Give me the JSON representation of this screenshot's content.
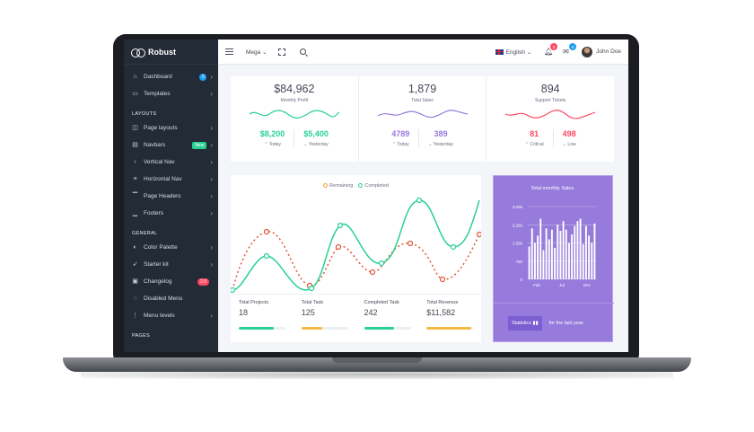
{
  "brand": {
    "name": "Robust"
  },
  "sidebar": {
    "items": [
      {
        "id": "dashboard",
        "label": "Dashboard",
        "icon": "home-icon",
        "badge": "5"
      },
      {
        "id": "templates",
        "label": "Templates",
        "icon": "monitor-icon"
      }
    ],
    "sections": [
      {
        "title": "LAYOUTS",
        "items": [
          {
            "label": "Page layouts",
            "icon": "layout-icon"
          },
          {
            "label": "Navbars",
            "icon": "navbar-icon",
            "badge": "New"
          },
          {
            "label": "Vertical Nav",
            "icon": "vertical-nav-icon"
          },
          {
            "label": "Horizontal Nav",
            "icon": "horizontal-nav-icon"
          },
          {
            "label": "Page Headers",
            "icon": "header-icon"
          },
          {
            "label": "Footers",
            "icon": "footer-icon"
          }
        ]
      },
      {
        "title": "GENERAL",
        "items": [
          {
            "label": "Color Palette",
            "icon": "palette-icon"
          },
          {
            "label": "Starter kit",
            "icon": "rocket-icon"
          },
          {
            "label": "Changelog",
            "icon": "clipboard-icon",
            "badge": "2.0"
          },
          {
            "label": "Disabled Menu",
            "icon": "eye-off-icon"
          },
          {
            "label": "Menu levels",
            "icon": "menu-levels-icon"
          }
        ]
      },
      {
        "title": "PAGES"
      }
    ]
  },
  "topbar": {
    "mega_label": "Mega",
    "language": "English",
    "notifications_count": "5",
    "messages_count": "5",
    "user_name": "John Doe"
  },
  "stats": [
    {
      "value": "$84,962",
      "label": "Monthly Profit",
      "color": "#28d094",
      "subs": [
        {
          "value": "$8,200",
          "label": "Today"
        },
        {
          "value": "$5,400",
          "label": "Yesterday"
        }
      ]
    },
    {
      "value": "1,879",
      "label": "Total Sales",
      "color": "#967adc",
      "subs": [
        {
          "value": "4789",
          "label": "Today"
        },
        {
          "value": "389",
          "label": "Yesterday"
        }
      ]
    },
    {
      "value": "894",
      "label": "Support Tickets",
      "color": "#ff4961",
      "subs": [
        {
          "value": "81",
          "label": "Critical"
        },
        {
          "value": "498",
          "label": "Low"
        }
      ]
    }
  ],
  "line_chart": {
    "legend": {
      "remaining": "Remaining",
      "completed": "Completed"
    },
    "colors": {
      "remaining": "#f4a02f",
      "completed": "#28d094",
      "remaining_points": "#e2553a"
    }
  },
  "totals": [
    {
      "label": "Total Projects",
      "value": "18",
      "color": "#28d094",
      "progress": 0.75
    },
    {
      "label": "Total Task",
      "value": "125",
      "color": "#f4b943",
      "progress": 0.45
    },
    {
      "label": "Completed Task",
      "value": "242",
      "color": "#28d094",
      "progress": 0.65
    },
    {
      "label": "Total Revenue",
      "value": "$11,582",
      "color": "#f4b943",
      "progress": 0.95
    }
  ],
  "bar_card": {
    "title": "Total monthly Sales.",
    "button_label": "Statistics",
    "footer_text": "for the last year."
  },
  "chart_data": {
    "type": "bar",
    "title": "Total monthly Sales.",
    "y_ticks": [
      "3,000",
      "2,250",
      "1,500",
      "750",
      "0"
    ],
    "ylim": [
      0,
      3000
    ],
    "x_tick_labels": [
      "Feb",
      "Jul",
      "Dec"
    ],
    "values": [
      1350,
      2100,
      1500,
      1800,
      2500,
      1200,
      2100,
      1650,
      2050,
      1300,
      2250,
      2000,
      2400,
      2050,
      1500,
      1850,
      2200,
      2400,
      2500,
      1450,
      2200,
      1800,
      1500,
      2300
    ]
  }
}
